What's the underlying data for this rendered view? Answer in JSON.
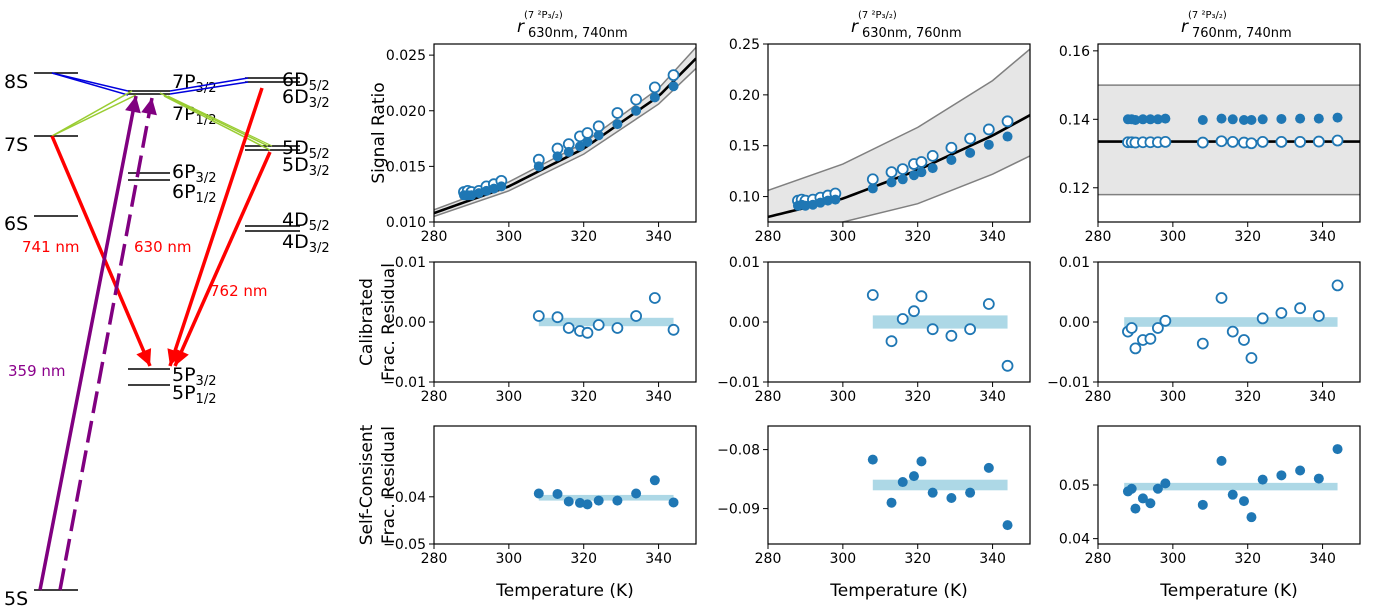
{
  "energy_diagram": {
    "levels": [
      {
        "label": "8S"
      },
      {
        "label": "7S"
      },
      {
        "label": "6S"
      },
      {
        "label": "5S"
      },
      {
        "label": "7P",
        "sub": "3/2"
      },
      {
        "label": "7P",
        "sub": "1/2"
      },
      {
        "label": "6P",
        "sub": "3/2"
      },
      {
        "label": "6P",
        "sub": "1/2"
      },
      {
        "label": "5P",
        "sub": "3/2"
      },
      {
        "label": "5P",
        "sub": "1/2"
      },
      {
        "label": "6D",
        "sub": "5/2"
      },
      {
        "label": "6D",
        "sub": "3/2"
      },
      {
        "label": "5D",
        "sub": "5/2"
      },
      {
        "label": "5D",
        "sub": "3/2"
      },
      {
        "label": "4D",
        "sub": "5/2"
      },
      {
        "label": "4D",
        "sub": "3/2"
      }
    ],
    "wavelength_labels": [
      {
        "text": "741 nm",
        "color": "#ff0000"
      },
      {
        "text": "630 nm",
        "color": "#ff0000"
      },
      {
        "text": "762 nm",
        "color": "#ff0000"
      },
      {
        "text": "359 nm",
        "color": "#8b008b"
      }
    ],
    "colors": {
      "red": "#ff0000",
      "purple": "#800080",
      "blue": "#0000dd",
      "olive": "#9acd32"
    }
  },
  "column_titles": [
    {
      "main": "r",
      "sup": "(7 ²P₃/₂)",
      "sub": "630nm, 740nm"
    },
    {
      "main": "r",
      "sup": "(7 ²P₃/₂)",
      "sub": "630nm, 760nm"
    },
    {
      "main": "r",
      "sup": "(7 ²P₃/₂)",
      "sub": "760nm, 740nm"
    }
  ],
  "row_labels": [
    {
      "lines": [
        "Signal Ratio"
      ]
    },
    {
      "lines": [
        "Calibrated",
        "Frac. Residual"
      ]
    },
    {
      "lines": [
        "Self-Consisent",
        "Frac. Residual"
      ]
    }
  ],
  "xlabel": "Temperature (K)",
  "colors": {
    "marker": "#1f77b4",
    "band": "#add8e6",
    "gray_fill": "#e6e6e6",
    "gray_line": "#808080",
    "fit": "#000000"
  },
  "chart_data": [
    {
      "id": "r0c0",
      "type": "scatter",
      "xlim": [
        280,
        350
      ],
      "ylim": [
        0.01,
        0.026
      ],
      "xticks": [
        280,
        300,
        320,
        340
      ],
      "yticks": [
        0.01,
        0.015,
        0.02,
        0.025
      ],
      "ytick_labels": [
        "0.010",
        "0.015",
        "0.020",
        "0.025"
      ],
      "fit_curve": {
        "x": [
          280,
          300,
          320,
          340,
          350
        ],
        "y": [
          0.0108,
          0.0132,
          0.0166,
          0.0213,
          0.0247
        ]
      },
      "band_upper": {
        "x": [
          280,
          300,
          320,
          340,
          350
        ],
        "y": [
          0.0111,
          0.0136,
          0.0171,
          0.022,
          0.0257
        ]
      },
      "band_lower": {
        "x": [
          280,
          300,
          320,
          340,
          350
        ],
        "y": [
          0.0105,
          0.0128,
          0.0161,
          0.0206,
          0.0238
        ]
      },
      "series": [
        {
          "style": "open",
          "x": [
            288,
            289,
            290,
            292,
            294,
            296,
            298,
            308,
            313,
            316,
            319,
            321,
            324,
            329,
            334,
            339,
            344
          ],
          "y": [
            0.0127,
            0.0128,
            0.0127,
            0.0128,
            0.0132,
            0.0134,
            0.0137,
            0.0156,
            0.0166,
            0.017,
            0.0177,
            0.018,
            0.0186,
            0.0198,
            0.021,
            0.0221,
            0.0232
          ]
        },
        {
          "style": "filled",
          "x": [
            288,
            289,
            290,
            292,
            294,
            296,
            298,
            308,
            313,
            316,
            319,
            321,
            324,
            329,
            334,
            339,
            344
          ],
          "y": [
            0.0124,
            0.0124,
            0.0124,
            0.0126,
            0.0128,
            0.013,
            0.0132,
            0.015,
            0.0159,
            0.0163,
            0.0168,
            0.0172,
            0.0178,
            0.0188,
            0.02,
            0.0212,
            0.0222
          ]
        }
      ]
    },
    {
      "id": "r0c1",
      "type": "scatter",
      "xlim": [
        280,
        350
      ],
      "ylim": [
        0.075,
        0.25
      ],
      "xticks": [
        280,
        300,
        320,
        340
      ],
      "yticks": [
        0.1,
        0.15,
        0.2,
        0.25
      ],
      "ytick_labels": [
        "0.10",
        "0.15",
        "0.20",
        "0.25"
      ],
      "fit_curve": {
        "x": [
          280,
          300,
          320,
          340,
          350
        ],
        "y": [
          0.08,
          0.098,
          0.126,
          0.16,
          0.18
        ]
      },
      "band_upper": {
        "x": [
          280,
          300,
          320,
          340,
          350
        ],
        "y": [
          0.106,
          0.132,
          0.168,
          0.214,
          0.245
        ]
      },
      "band_lower": {
        "x": [
          280,
          300,
          320,
          340,
          350
        ],
        "y": [
          0.062,
          0.075,
          0.093,
          0.122,
          0.14
        ]
      },
      "series": [
        {
          "style": "open",
          "x": [
            288,
            289,
            290,
            292,
            294,
            296,
            298,
            308,
            313,
            316,
            319,
            321,
            324,
            329,
            334,
            339,
            344
          ],
          "y": [
            0.096,
            0.097,
            0.096,
            0.097,
            0.099,
            0.101,
            0.103,
            0.117,
            0.124,
            0.127,
            0.132,
            0.134,
            0.14,
            0.148,
            0.157,
            0.166,
            0.174
          ]
        },
        {
          "style": "filled",
          "x": [
            288,
            289,
            290,
            292,
            294,
            296,
            298,
            308,
            313,
            316,
            319,
            321,
            324,
            329,
            334,
            339,
            344
          ],
          "y": [
            0.091,
            0.092,
            0.091,
            0.092,
            0.094,
            0.096,
            0.097,
            0.108,
            0.114,
            0.117,
            0.121,
            0.124,
            0.128,
            0.136,
            0.143,
            0.151,
            0.159
          ]
        }
      ]
    },
    {
      "id": "r0c2",
      "type": "scatter",
      "xlim": [
        280,
        350
      ],
      "ylim": [
        0.11,
        0.162
      ],
      "xticks": [
        280,
        300,
        320,
        340
      ],
      "yticks": [
        0.12,
        0.14,
        0.16
      ],
      "ytick_labels": [
        "0.12",
        "0.14",
        "0.16"
      ],
      "fit_curve": {
        "x": [
          280,
          350
        ],
        "y": [
          0.1335,
          0.1335
        ]
      },
      "band_upper": {
        "x": [
          280,
          350
        ],
        "y": [
          0.15,
          0.15
        ]
      },
      "band_lower": {
        "x": [
          280,
          350
        ],
        "y": [
          0.118,
          0.118
        ]
      },
      "series": [
        {
          "style": "filled",
          "x": [
            288,
            289,
            290,
            292,
            294,
            296,
            298,
            308,
            313,
            316,
            319,
            321,
            324,
            329,
            334,
            339,
            344
          ],
          "y": [
            0.14,
            0.14,
            0.1398,
            0.14,
            0.14,
            0.14,
            0.1402,
            0.1398,
            0.1402,
            0.14,
            0.1398,
            0.1398,
            0.14,
            0.1401,
            0.1402,
            0.1402,
            0.1405
          ]
        },
        {
          "style": "open",
          "x": [
            288,
            289,
            290,
            292,
            294,
            296,
            298,
            308,
            313,
            316,
            319,
            321,
            324,
            329,
            334,
            339,
            344
          ],
          "y": [
            0.1333,
            0.1333,
            0.1332,
            0.1333,
            0.1333,
            0.1333,
            0.1334,
            0.1332,
            0.1336,
            0.1334,
            0.1332,
            0.133,
            0.1334,
            0.1334,
            0.1334,
            0.1335,
            0.1338
          ]
        }
      ]
    },
    {
      "id": "r1c0",
      "type": "scatter",
      "xlim": [
        280,
        350
      ],
      "ylim": [
        -0.01,
        0.01
      ],
      "xticks": [
        280,
        300,
        320,
        340
      ],
      "yticks": [
        -0.01,
        0.0,
        0.01
      ],
      "ytick_labels": [
        "-0.01",
        "0.00",
        "0.01"
      ],
      "band": {
        "x": [
          308,
          344
        ],
        "y": 0.0,
        "half_height": 0.0007
      },
      "series": [
        {
          "style": "open",
          "x": [
            308,
            313,
            316,
            319,
            321,
            324,
            329,
            334,
            339,
            344
          ],
          "y": [
            0.001,
            0.0008,
            -0.001,
            -0.0015,
            -0.0018,
            -0.0005,
            -0.001,
            0.001,
            0.004,
            -0.0013
          ]
        }
      ]
    },
    {
      "id": "r1c1",
      "type": "scatter",
      "xlim": [
        280,
        350
      ],
      "ylim": [
        -0.01,
        0.01
      ],
      "xticks": [
        280,
        300,
        320,
        340
      ],
      "yticks": [
        -0.01,
        0.0,
        0.01
      ],
      "ytick_labels": [
        "-0.01",
        "0.00",
        "0.01"
      ],
      "band": {
        "x": [
          308,
          344
        ],
        "y": 0.0,
        "half_height": 0.0011
      },
      "series": [
        {
          "style": "open",
          "x": [
            308,
            313,
            316,
            319,
            321,
            324,
            329,
            334,
            339,
            344
          ],
          "y": [
            0.0045,
            -0.0032,
            0.0005,
            0.0018,
            0.0043,
            -0.0012,
            -0.0023,
            -0.0012,
            0.003,
            -0.0073
          ]
        }
      ]
    },
    {
      "id": "r1c2",
      "type": "scatter",
      "xlim": [
        280,
        350
      ],
      "ylim": [
        -0.01,
        0.01
      ],
      "xticks": [
        280,
        300,
        320,
        340
      ],
      "yticks": [
        -0.01,
        0.0,
        0.01
      ],
      "ytick_labels": [
        "-0.01",
        "0.00",
        "0.01"
      ],
      "band": {
        "x": [
          287,
          344
        ],
        "y": 0.0,
        "half_height": 0.0008
      },
      "series": [
        {
          "style": "open",
          "x": [
            288,
            289,
            290,
            292,
            294,
            296,
            298,
            308,
            313,
            316,
            319,
            321,
            324,
            329,
            334,
            339,
            344
          ],
          "y": [
            -0.0016,
            -0.001,
            -0.0044,
            -0.003,
            -0.0028,
            -0.001,
            0.0002,
            -0.0036,
            0.004,
            -0.0016,
            -0.003,
            -0.006,
            0.0006,
            0.0015,
            0.0023,
            0.001,
            0.0061
          ]
        }
      ]
    },
    {
      "id": "r2c0",
      "type": "scatter",
      "xlim": [
        280,
        350
      ],
      "ylim": [
        -0.05,
        -0.025
      ],
      "xticks": [
        280,
        300,
        320,
        340
      ],
      "yticks": [
        -0.05,
        -0.04
      ],
      "ytick_labels": [
        "-0.05",
        "-0.04"
      ],
      "band": {
        "x": [
          308,
          344
        ],
        "y": -0.0402,
        "half_height": 0.0006
      },
      "series": [
        {
          "style": "filled",
          "x": [
            308,
            313,
            316,
            319,
            321,
            324,
            329,
            334,
            339,
            344
          ],
          "y": [
            -0.0393,
            -0.0394,
            -0.041,
            -0.0413,
            -0.0416,
            -0.0408,
            -0.0408,
            -0.0393,
            -0.0365,
            -0.0412
          ]
        }
      ]
    },
    {
      "id": "r2c1",
      "type": "scatter",
      "xlim": [
        280,
        350
      ],
      "ylim": [
        -0.096,
        -0.076
      ],
      "xticks": [
        280,
        300,
        320,
        340
      ],
      "yticks": [
        -0.09,
        -0.08
      ],
      "ytick_labels": [
        "-0.09",
        "-0.08"
      ],
      "band": {
        "x": [
          308,
          344
        ],
        "y": -0.086,
        "half_height": 0.0009
      },
      "series": [
        {
          "style": "filled",
          "x": [
            308,
            313,
            316,
            319,
            321,
            324,
            329,
            334,
            339,
            344
          ],
          "y": [
            -0.0817,
            -0.089,
            -0.0855,
            -0.0845,
            -0.082,
            -0.0873,
            -0.0882,
            -0.0873,
            -0.0831,
            -0.0928
          ]
        }
      ]
    },
    {
      "id": "r2c2",
      "type": "scatter",
      "xlim": [
        280,
        350
      ],
      "ylim": [
        0.039,
        0.061
      ],
      "xticks": [
        280,
        300,
        320,
        340
      ],
      "yticks": [
        0.04,
        0.05
      ],
      "ytick_labels": [
        "0.04",
        "0.05"
      ],
      "band": {
        "x": [
          287,
          344
        ],
        "y": 0.0497,
        "half_height": 0.0007
      },
      "series": [
        {
          "style": "filled",
          "x": [
            288,
            289,
            290,
            292,
            294,
            296,
            298,
            308,
            313,
            316,
            319,
            321,
            324,
            329,
            334,
            339,
            344
          ],
          "y": [
            0.0488,
            0.0493,
            0.0456,
            0.0475,
            0.0466,
            0.0493,
            0.0503,
            0.0463,
            0.0545,
            0.0482,
            0.047,
            0.044,
            0.051,
            0.0518,
            0.0527,
            0.0512,
            0.0567
          ]
        }
      ]
    }
  ]
}
